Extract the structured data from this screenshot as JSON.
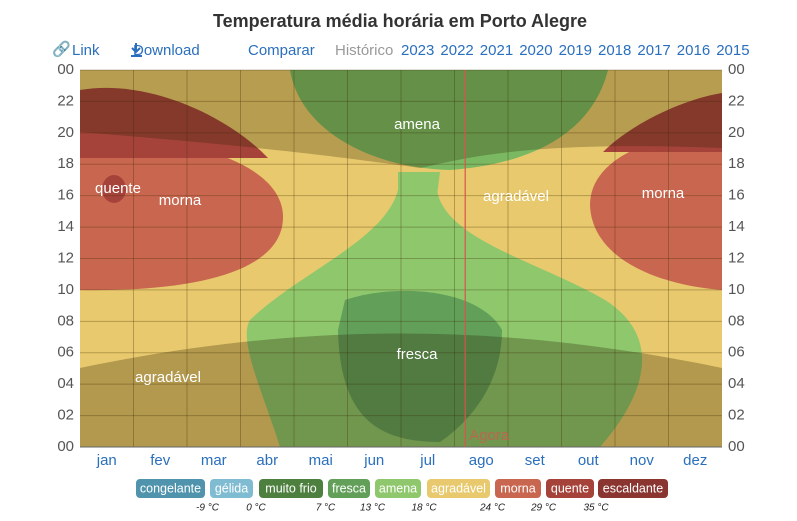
{
  "chart_data": {
    "type": "contour",
    "title": "Temperatura média horária em Porto Alegre",
    "nav": [
      "Link",
      "Download",
      "Comparar"
    ],
    "history_label": "Histórico",
    "years": [
      "2023",
      "2022",
      "2021",
      "2020",
      "2019",
      "2018",
      "2017",
      "2016",
      "2015"
    ],
    "categories": [
      "jan",
      "fev",
      "mar",
      "abr",
      "mai",
      "jun",
      "jul",
      "ago",
      "set",
      "out",
      "nov",
      "dez"
    ],
    "xlim": [
      0,
      12
    ],
    "ylim": [
      0,
      24
    ],
    "yticks": [
      {
        "value": 0,
        "label": "00"
      },
      {
        "value": 2,
        "label": "02"
      },
      {
        "value": 4,
        "label": "04"
      },
      {
        "value": 6,
        "label": "06"
      },
      {
        "value": 8,
        "label": "08"
      },
      10,
      12,
      14,
      16,
      18,
      20,
      22,
      {
        "value": 24,
        "label": "00"
      }
    ],
    "grid": true,
    "now": {
      "x": 7.2,
      "label": "Agora",
      "color": "#d9534f"
    },
    "annotations": [
      "amena",
      "quente",
      "morna",
      "agradável",
      "morna",
      "agradável",
      "fresca"
    ],
    "legend": [
      {
        "name": "congelante",
        "color": "#4f93ad"
      },
      {
        "name": "gélida",
        "color": "#7fbcd2"
      },
      {
        "name": "muito frio",
        "color": "#4d7f3e"
      },
      {
        "name": "fresca",
        "color": "#62a05a"
      },
      {
        "name": "amena",
        "color": "#8ec76c"
      },
      {
        "name": "agradável",
        "color": "#e8c96d"
      },
      {
        "name": "morna",
        "color": "#c9664f"
      },
      {
        "name": "quente",
        "color": "#a5433a"
      },
      {
        "name": "escaldante",
        "color": "#8a3530"
      }
    ],
    "legend_thresholds": [
      "-9 °C",
      "0 °C",
      "7 °C",
      "13 °C",
      "18 °C",
      "24 °C",
      "29 °C",
      "35 °C"
    ]
  }
}
